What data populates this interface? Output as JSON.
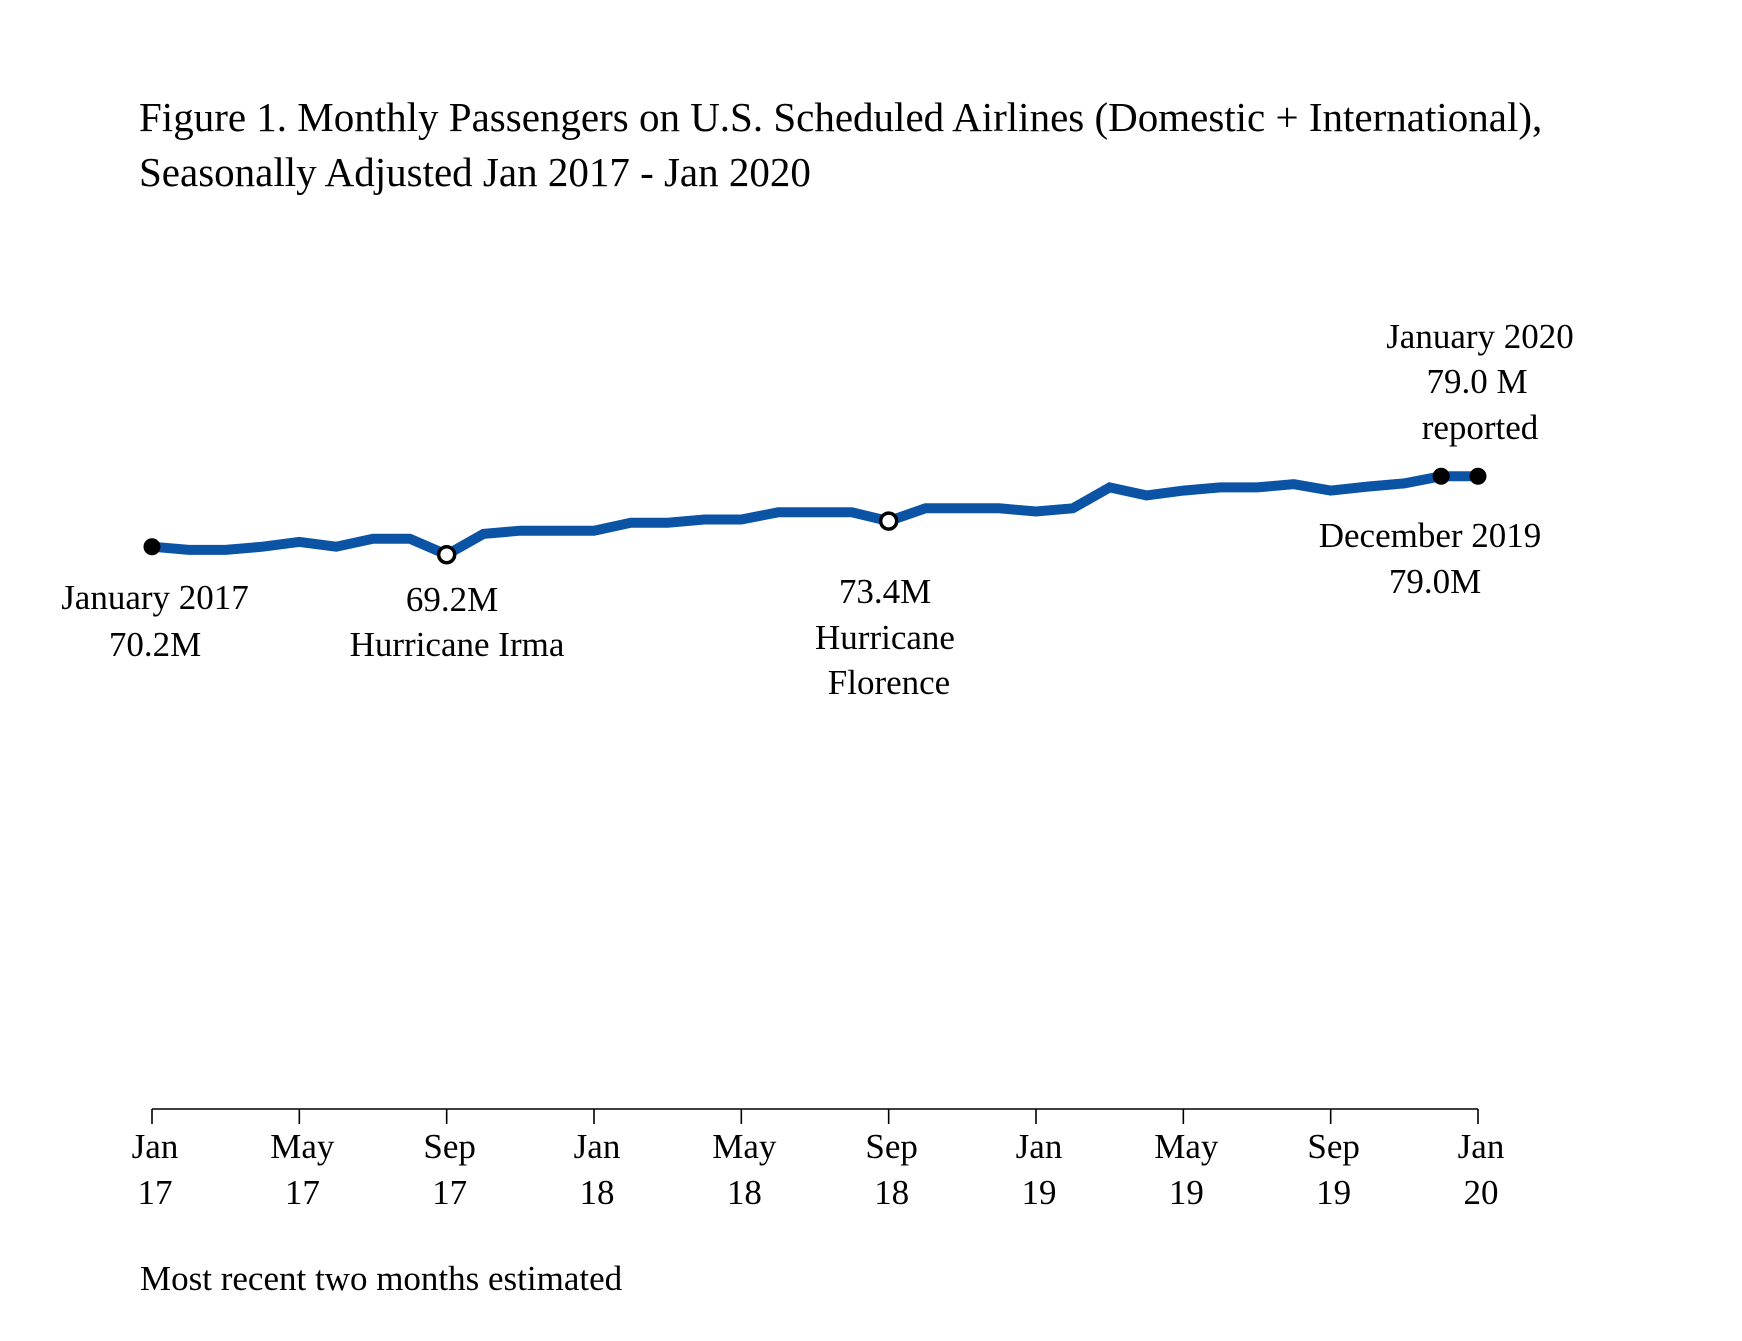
{
  "chart_data": {
    "type": "line",
    "title": [
      "Figure 1. Monthly Passengers on U.S. Scheduled Airlines (Domestic + International),",
      "Seasonally Adjusted Jan 2017 - Jan 2020"
    ],
    "xlabel": "",
    "ylabel": "",
    "ylim": [
      0,
      90
    ],
    "grid": false,
    "y_axis_visible": false,
    "line_color": "#0b53a5",
    "x": [
      "2017-01",
      "2017-02",
      "2017-03",
      "2017-04",
      "2017-05",
      "2017-06",
      "2017-07",
      "2017-08",
      "2017-09",
      "2017-10",
      "2017-11",
      "2017-12",
      "2018-01",
      "2018-02",
      "2018-03",
      "2018-04",
      "2018-05",
      "2018-06",
      "2018-07",
      "2018-08",
      "2018-09",
      "2018-10",
      "2018-11",
      "2018-12",
      "2019-01",
      "2019-02",
      "2019-03",
      "2019-04",
      "2019-05",
      "2019-06",
      "2019-07",
      "2019-08",
      "2019-09",
      "2019-10",
      "2019-11",
      "2019-12",
      "2020-01"
    ],
    "values": [
      70.2,
      69.8,
      69.8,
      70.2,
      70.8,
      70.2,
      71.2,
      71.2,
      69.2,
      71.8,
      72.2,
      72.2,
      72.2,
      73.2,
      73.2,
      73.6,
      73.6,
      74.5,
      74.5,
      74.5,
      73.4,
      75.0,
      75.0,
      75.0,
      74.6,
      75.0,
      77.6,
      76.6,
      77.2,
      77.6,
      77.6,
      78.0,
      77.2,
      77.7,
      78.1,
      79.0,
      79.0
    ],
    "x_ticks": [
      {
        "month": 0,
        "line1": "Jan",
        "line2": "17"
      },
      {
        "month": 4,
        "line1": "May",
        "line2": "17"
      },
      {
        "month": 8,
        "line1": "Sep",
        "line2": "17"
      },
      {
        "month": 12,
        "line1": "Jan",
        "line2": "18"
      },
      {
        "month": 16,
        "line1": "May",
        "line2": "18"
      },
      {
        "month": 20,
        "line1": "Sep",
        "line2": "18"
      },
      {
        "month": 24,
        "line1": "Jan",
        "line2": "19"
      },
      {
        "month": 28,
        "line1": "May",
        "line2": "19"
      },
      {
        "month": 32,
        "line1": "Sep",
        "line2": "19"
      },
      {
        "month": 36,
        "line1": "Jan",
        "line2": "20"
      }
    ],
    "markers": [
      {
        "month": 0,
        "style": "filled"
      },
      {
        "month": 8,
        "style": "open"
      },
      {
        "month": 20,
        "style": "open"
      },
      {
        "month": 35,
        "style": "filled"
      },
      {
        "month": 36,
        "style": "filled"
      }
    ],
    "annotations": [
      {
        "lines": [
          "January 2017",
          "70.2M"
        ]
      },
      {
        "lines": [
          "69.2M",
          "Hurricane Irma"
        ]
      },
      {
        "lines": [
          "73.4M",
          "Hurricane",
          "Florence"
        ]
      },
      {
        "lines": [
          "January 2020",
          "79.0 M",
          "reported"
        ]
      },
      {
        "lines": [
          "December 2019",
          "79.0M"
        ]
      }
    ],
    "footnote": "Most recent two months estimated"
  }
}
